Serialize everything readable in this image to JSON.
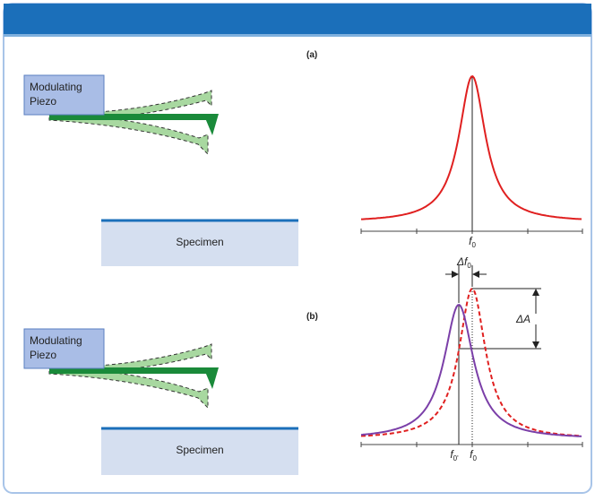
{
  "panel_a": {
    "label": "(a)",
    "piezo": [
      "Modulating",
      "Piezo"
    ],
    "specimen": "Specimen",
    "peak_label": {
      "symbol": "f",
      "sub": "0"
    }
  },
  "panel_b": {
    "label": "(b)",
    "piezo": [
      "Modulating",
      "Piezo"
    ],
    "specimen": "Specimen",
    "delta_f": {
      "symbol": "Δf",
      "sub": "0"
    },
    "delta_a": "ΔA",
    "shifted_label": {
      "symbol": "f",
      "sub": "0'"
    },
    "peak_label": {
      "symbol": "f",
      "sub": "0"
    }
  }
}
